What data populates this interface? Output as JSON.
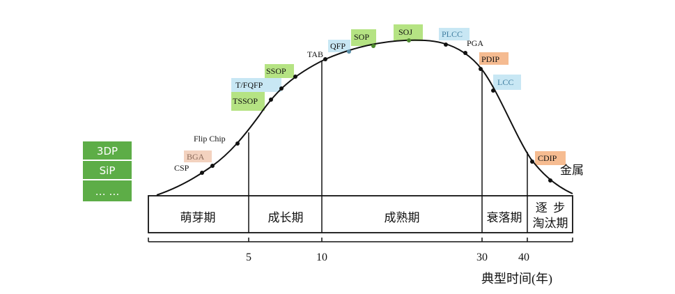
{
  "left_box": {
    "items": [
      "3DP",
      "SiP",
      "… …"
    ]
  },
  "packages": [
    "CSP",
    "BGA",
    "Flip Chip",
    "TSSOP",
    "T/FQFP",
    "SSOP",
    "TAB",
    "QFP",
    "SOP",
    "SOJ",
    "PLCC",
    "PGA",
    "PDIP",
    "LCC",
    "CDIP",
    "金属"
  ],
  "phases": [
    "萌芽期",
    "成长期",
    "成熟期",
    "衰落期",
    [
      "逐  步",
      "淘汰期"
    ]
  ],
  "axis": {
    "ticks": [
      "5",
      "10",
      "30",
      "40"
    ],
    "label": "典型时间(年)"
  }
}
